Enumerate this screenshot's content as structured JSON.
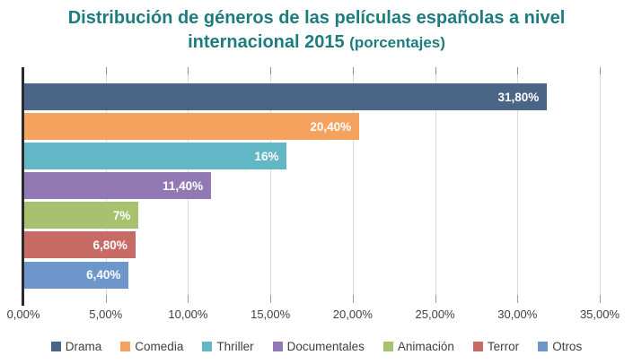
{
  "title": {
    "line1": "Distribución de géneros de las películas españolas a nivel",
    "line2_main": "internacional 2015",
    "line2_sub": "(porcentajes)",
    "color": "#1E7C7E"
  },
  "chart_data": {
    "type": "bar",
    "orientation": "horizontal",
    "title": "Distribución de géneros de las películas españolas a nivel internacional 2015 (porcentajes)",
    "categories": [
      "Drama",
      "Comedia",
      "Thriller",
      "Documentales",
      "Animación",
      "Terror",
      "Otros"
    ],
    "values": [
      31.8,
      20.4,
      16,
      11.4,
      7,
      6.8,
      6.4
    ],
    "value_labels": [
      "31,80%",
      "20,40%",
      "16%",
      "11,40%",
      "7%",
      "6,80%",
      "6,40%"
    ],
    "colors": [
      "#4A6586",
      "#F6A25F",
      "#62B7C7",
      "#9279B4",
      "#A7C16F",
      "#C76B67",
      "#6D97CB"
    ],
    "xlabel": "",
    "ylabel": "",
    "xlim": [
      0,
      35
    ],
    "x_tick_values": [
      0,
      5,
      10,
      15,
      20,
      25,
      30,
      35
    ],
    "x_tick_labels": [
      "0,00%",
      "5,00%",
      "10,00%",
      "15,00%",
      "20,00%",
      "25,00%",
      "30,00%",
      "35,00%"
    ],
    "grid": true,
    "gridline_color": "#D9D9D9",
    "legend_position": "bottom"
  },
  "legend": {
    "items": [
      {
        "label": "Drama",
        "color": "#4A6586"
      },
      {
        "label": "Comedia",
        "color": "#F6A25F"
      },
      {
        "label": "Thriller",
        "color": "#62B7C7"
      },
      {
        "label": "Documentales",
        "color": "#9279B4"
      },
      {
        "label": "Animación",
        "color": "#A7C16F"
      },
      {
        "label": "Terror",
        "color": "#C76B67"
      },
      {
        "label": "Otros",
        "color": "#6D97CB"
      }
    ]
  }
}
